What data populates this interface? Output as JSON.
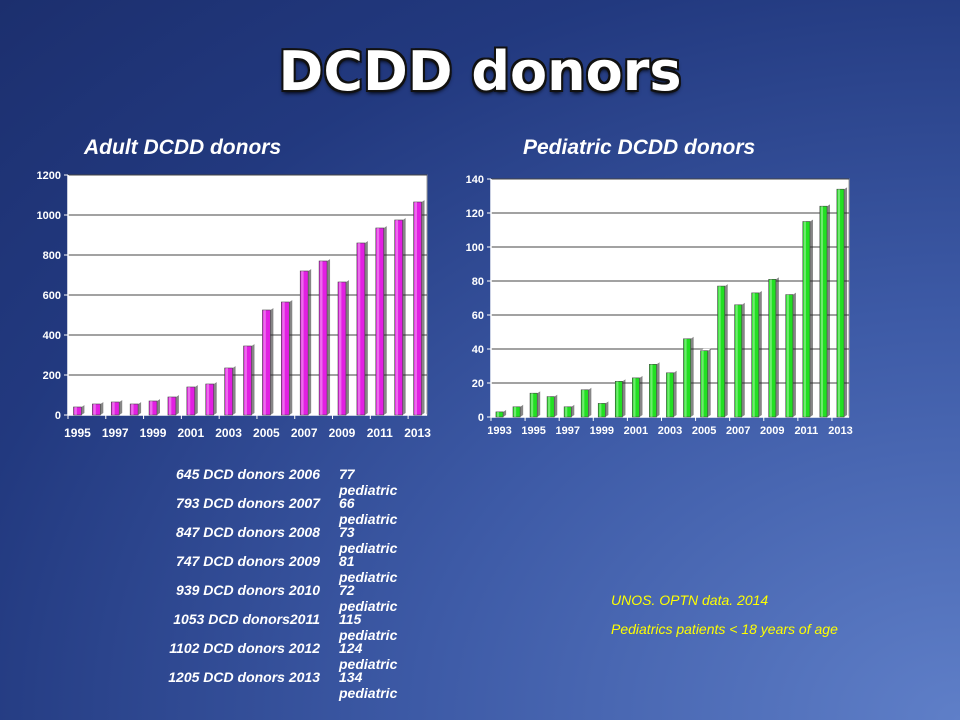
{
  "slide": {
    "title": "DCDD donors"
  },
  "chart_data": [
    {
      "type": "bar",
      "title": "Adult DCDD donors",
      "xlabel": "",
      "ylabel": "",
      "ylim": [
        0,
        1200
      ],
      "yticks": [
        0,
        200,
        400,
        600,
        800,
        1000,
        1200
      ],
      "grid": true,
      "color": "#e21fe2",
      "categories": [
        "1995",
        "1996",
        "1997",
        "1998",
        "1999",
        "2000",
        "2001",
        "2002",
        "2003",
        "2004",
        "2005",
        "2006",
        "2007",
        "2008",
        "2009",
        "2010",
        "2011",
        "2012",
        "2013"
      ],
      "tick_labels": [
        "1995",
        "1997",
        "1999",
        "2001",
        "2003",
        "2005",
        "2007",
        "2009",
        "2011",
        "2013"
      ],
      "values": [
        40,
        55,
        65,
        55,
        70,
        90,
        140,
        155,
        235,
        345,
        525,
        565,
        720,
        770,
        665,
        860,
        935,
        975,
        1065
      ]
    },
    {
      "type": "bar",
      "title": "Pediatric DCDD donors",
      "xlabel": "",
      "ylabel": "",
      "ylim": [
        0,
        140
      ],
      "yticks": [
        0,
        20,
        40,
        60,
        80,
        100,
        120,
        140
      ],
      "grid": true,
      "color": "#22e022",
      "categories": [
        "1993",
        "1994",
        "1995",
        "1996",
        "1997",
        "1998",
        "1999",
        "2000",
        "2001",
        "2002",
        "2003",
        "2004",
        "2005",
        "2006",
        "2007",
        "2008",
        "2009",
        "2010",
        "2011",
        "2012",
        "2013"
      ],
      "tick_labels": [
        "1993",
        "1995",
        "1997",
        "1999",
        "2001",
        "2003",
        "2005",
        "2007",
        "2009",
        "2011",
        "2013"
      ],
      "values": [
        3,
        6,
        14,
        12,
        6,
        16,
        8,
        21,
        23,
        31,
        26,
        46,
        39,
        77,
        66,
        73,
        81,
        72,
        115,
        124,
        134
      ]
    }
  ],
  "stats": [
    {
      "left": "645 DCD donors 2006",
      "right": "77 pediatric"
    },
    {
      "left": "793 DCD donors 2007",
      "right": "66 pediatric"
    },
    {
      "left": "847 DCD donors 2008",
      "right": "73 pediatric"
    },
    {
      "left": "747 DCD donors 2009",
      "right": "81 pediatric"
    },
    {
      "left": "939 DCD donors 2010",
      "right": "72 pediatric"
    },
    {
      "left": "1053 DCD donors2011",
      "right": "115 pediatric"
    },
    {
      "left": "1102 DCD donors 2012",
      "right": "124 pediatric"
    },
    {
      "left": "1205 DCD donors 2013",
      "right": "134 pediatric"
    }
  ],
  "source": {
    "line1": "UNOS. OPTN data. 2014",
    "line2": "Pediatrics patients < 18 years of age"
  }
}
